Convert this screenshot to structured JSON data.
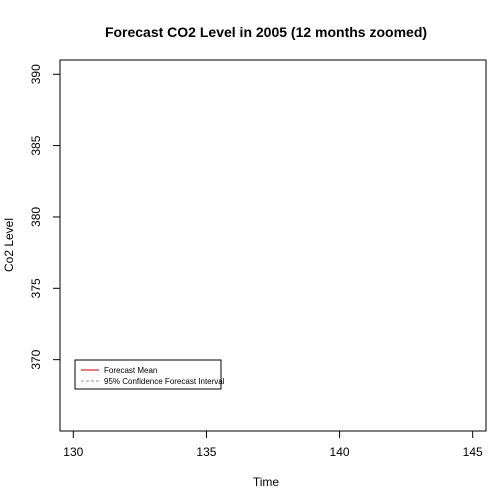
{
  "chart_data": {
    "type": "line",
    "title": "Forecast CO2 Level in 2005 (12 months zoomed)",
    "xlabel": "Time",
    "ylabel": "Co2 Level",
    "xlim": [
      129.5,
      145.5
    ],
    "ylim": [
      365,
      391
    ],
    "x_ticks": [
      130,
      135,
      140,
      145
    ],
    "y_ticks": [
      370,
      375,
      380,
      385,
      390
    ],
    "series": [
      {
        "name": "Forecast Mean",
        "color": "#cc0000",
        "line_style": "solid",
        "x": [],
        "y": []
      },
      {
        "name": "95% Confidence Forecast Interval",
        "color": "#999999",
        "line_style": "dashed",
        "x": [],
        "y": []
      }
    ],
    "legend_position": "bottom-left",
    "grid": false
  }
}
